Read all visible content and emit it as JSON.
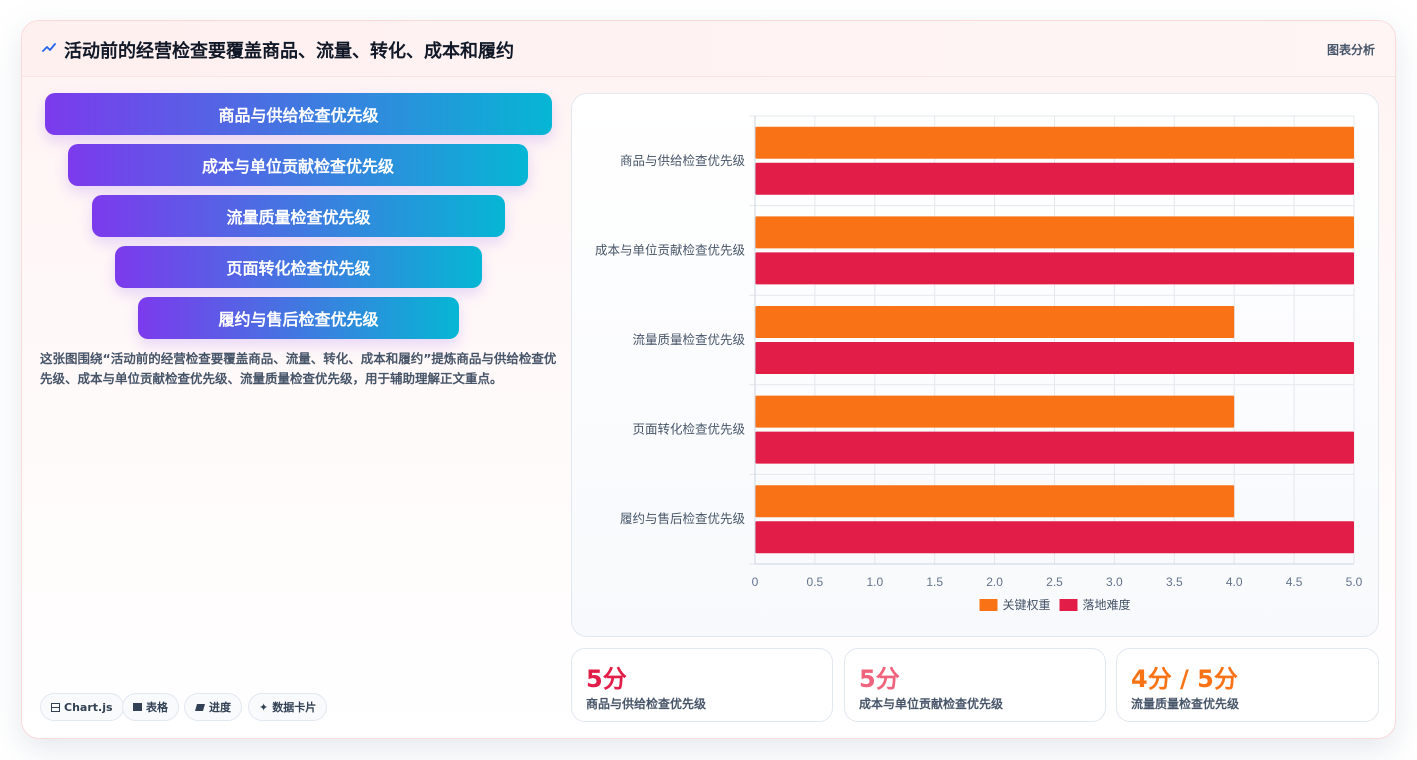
{
  "header": {
    "icon": "trend-icon",
    "title": "活动前的经营检查要覆盖商品、流量、转化、成本和履约",
    "tag": "图表分析"
  },
  "funnel": {
    "items": [
      "商品与供给检查优先级",
      "成本与单位贡献检查优先级",
      "流量质量检查优先级",
      "页面转化检查优先级",
      "履约与售后检查优先级"
    ],
    "gradient": [
      "#7c3aed",
      "#06b6d4"
    ]
  },
  "description": "这张图围绕“活动前的经营检查要覆盖商品、流量、转化、成本和履约”提炼商品与供给检查优先级、成本与单位贡献检查优先级、流量质量检查优先级，用于辅助理解正文重点。",
  "pills": [
    {
      "icon": "chart-icon",
      "label": "Chart.js"
    },
    {
      "icon": "table-icon",
      "label": "表格"
    },
    {
      "icon": "progress-icon",
      "label": "进度"
    },
    {
      "icon": "card-icon",
      "label": "数据卡片"
    }
  ],
  "chart_data": {
    "type": "bar",
    "orientation": "horizontal",
    "categories": [
      "商品与供给检查优先级",
      "成本与单位贡献检查优先级",
      "流量质量检查优先级",
      "页面转化检查优先级",
      "履约与售后检查优先级"
    ],
    "series": [
      {
        "name": "关键权重",
        "values": [
          5,
          5,
          4,
          4,
          4
        ],
        "color": "#f97316"
      },
      {
        "name": "落地难度",
        "values": [
          5,
          5,
          5,
          5,
          5
        ],
        "color": "#e11d48"
      }
    ],
    "xlim": [
      0,
      5
    ],
    "xticks": [
      "0",
      "0.5",
      "1.0",
      "1.5",
      "2.0",
      "2.5",
      "3.0",
      "3.5",
      "4.0",
      "4.5",
      "5.0"
    ],
    "grid": true,
    "legend": "bottom"
  },
  "stats": [
    {
      "value": "5分",
      "label": "商品与供给检查优先级",
      "color": "#e11d48"
    },
    {
      "value": "5分",
      "label": "成本与单位贡献检查优先级",
      "color": "#f0637c"
    },
    {
      "value": "4分 / 5分",
      "label": "流量质量检查优先级",
      "color": "#f97316"
    }
  ]
}
